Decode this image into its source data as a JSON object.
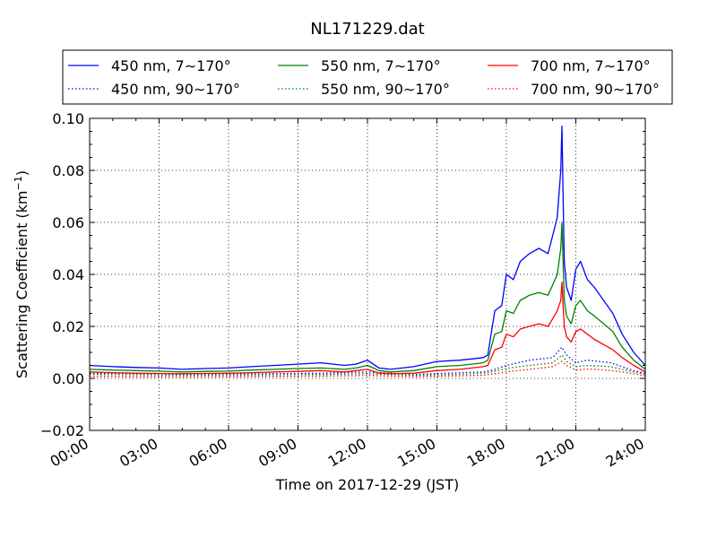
{
  "chart_data": {
    "type": "line",
    "title": "NL171229.dat",
    "xlabel": "Time on 2017-12-29 (JST)",
    "ylabel": "Scattering Coefficient (km",
    "ylabel_sup": "−1",
    "ylabel_end": ")",
    "grid": true,
    "legend_position": "top, above plot, 3 columns",
    "xlim": [
      0,
      24
    ],
    "ylim": [
      -0.02,
      0.1
    ],
    "x_ticks": [
      {
        "value": 0,
        "label": "00:00"
      },
      {
        "value": 3,
        "label": "03:00"
      },
      {
        "value": 6,
        "label": "06:00"
      },
      {
        "value": 9,
        "label": "09:00"
      },
      {
        "value": 12,
        "label": "12:00"
      },
      {
        "value": 15,
        "label": "15:00"
      },
      {
        "value": 18,
        "label": "18:00"
      },
      {
        "value": 21,
        "label": "21:00"
      },
      {
        "value": 24,
        "label": "24:00"
      }
    ],
    "y_ticks": [
      {
        "value": -0.02,
        "label": "−0.02"
      },
      {
        "value": 0.0,
        "label": "0.00"
      },
      {
        "value": 0.02,
        "label": "0.02"
      },
      {
        "value": 0.04,
        "label": "0.04"
      },
      {
        "value": 0.06,
        "label": "0.06"
      },
      {
        "value": 0.08,
        "label": "0.08"
      },
      {
        "value": 0.1,
        "label": "0.10"
      }
    ],
    "series": [
      {
        "name": "450 nm, 7∼170°",
        "color": "#0000ff",
        "style": "solid",
        "x": [
          0,
          1,
          2,
          3,
          4,
          5,
          6,
          7,
          8,
          9,
          10,
          11,
          11.5,
          12,
          12.5,
          13,
          14,
          15,
          16,
          16.5,
          17,
          17.2,
          17.5,
          17.8,
          18,
          18.3,
          18.6,
          19,
          19.4,
          19.8,
          20.0,
          20.2,
          20.35,
          20.4,
          20.45,
          20.5,
          20.6,
          20.8,
          21.0,
          21.2,
          21.5,
          21.8,
          22.2,
          22.6,
          23.0,
          23.5,
          24.0
        ],
        "y": [
          0.005,
          0.0045,
          0.0042,
          0.004,
          0.0035,
          0.0038,
          0.004,
          0.0045,
          0.005,
          0.0055,
          0.006,
          0.005,
          0.0055,
          0.007,
          0.004,
          0.0035,
          0.0045,
          0.0065,
          0.007,
          0.0075,
          0.008,
          0.009,
          0.026,
          0.028,
          0.04,
          0.038,
          0.045,
          0.048,
          0.05,
          0.048,
          0.055,
          0.062,
          0.08,
          0.097,
          0.07,
          0.045,
          0.035,
          0.03,
          0.042,
          0.045,
          0.038,
          0.035,
          0.03,
          0.025,
          0.017,
          0.01,
          0.005
        ]
      },
      {
        "name": "450 nm, 90∼170°",
        "color": "#0000ff",
        "style": "dotted",
        "x": [
          0,
          2,
          4,
          6,
          8,
          10,
          12,
          14,
          16,
          17,
          17.5,
          18,
          18.5,
          19,
          19.5,
          20,
          20.4,
          20.6,
          21,
          21.5,
          22,
          22.5,
          23,
          23.5,
          24
        ],
        "y": [
          0.002,
          0.0018,
          0.0016,
          0.0017,
          0.0018,
          0.002,
          0.0025,
          0.0015,
          0.0022,
          0.0025,
          0.0035,
          0.005,
          0.006,
          0.007,
          0.0075,
          0.008,
          0.012,
          0.009,
          0.006,
          0.007,
          0.0065,
          0.006,
          0.0045,
          0.003,
          0.002
        ]
      },
      {
        "name": "550 nm, 7∼170°",
        "color": "#008000",
        "style": "solid",
        "x": [
          0,
          1,
          2,
          3,
          4,
          5,
          6,
          7,
          8,
          9,
          10,
          11,
          11.5,
          12,
          12.5,
          13,
          14,
          15,
          16,
          16.5,
          17,
          17.2,
          17.5,
          17.8,
          18,
          18.3,
          18.6,
          19,
          19.4,
          19.8,
          20.0,
          20.2,
          20.35,
          20.4,
          20.45,
          20.5,
          20.6,
          20.8,
          21.0,
          21.2,
          21.5,
          21.8,
          22.2,
          22.6,
          23.0,
          23.5,
          24.0
        ],
        "y": [
          0.0035,
          0.0032,
          0.003,
          0.0028,
          0.0025,
          0.0027,
          0.0028,
          0.0032,
          0.0035,
          0.0038,
          0.004,
          0.0035,
          0.004,
          0.005,
          0.003,
          0.0025,
          0.003,
          0.0045,
          0.005,
          0.0055,
          0.006,
          0.007,
          0.017,
          0.018,
          0.026,
          0.025,
          0.03,
          0.032,
          0.033,
          0.032,
          0.036,
          0.04,
          0.05,
          0.06,
          0.045,
          0.03,
          0.024,
          0.021,
          0.028,
          0.03,
          0.026,
          0.024,
          0.021,
          0.018,
          0.012,
          0.007,
          0.0035
        ]
      },
      {
        "name": "550 nm, 90∼170°",
        "color": "#008000",
        "style": "dotted",
        "x": [
          0,
          2,
          4,
          6,
          8,
          10,
          12,
          14,
          16,
          17,
          17.5,
          18,
          18.5,
          19,
          19.5,
          20,
          20.4,
          20.6,
          21,
          21.5,
          22,
          22.5,
          23,
          23.5,
          24
        ],
        "y": [
          0.0015,
          0.0014,
          0.0012,
          0.0013,
          0.0014,
          0.0015,
          0.0018,
          0.0012,
          0.0016,
          0.002,
          0.0028,
          0.0038,
          0.0045,
          0.005,
          0.0055,
          0.006,
          0.009,
          0.0065,
          0.0045,
          0.005,
          0.0048,
          0.0045,
          0.0035,
          0.0025,
          0.0015
        ]
      },
      {
        "name": "700 nm, 7∼170°",
        "color": "#ff0000",
        "style": "solid",
        "x": [
          0,
          1,
          2,
          3,
          4,
          5,
          6,
          7,
          8,
          9,
          10,
          11,
          11.5,
          12,
          12.5,
          13,
          14,
          15,
          16,
          16.5,
          17,
          17.2,
          17.5,
          17.8,
          18,
          18.3,
          18.6,
          19,
          19.4,
          19.8,
          20.0,
          20.2,
          20.35,
          20.4,
          20.45,
          20.5,
          20.6,
          20.8,
          21.0,
          21.2,
          21.5,
          21.8,
          22.2,
          22.6,
          23.0,
          23.5,
          24.0
        ],
        "y": [
          0.0025,
          0.0022,
          0.002,
          0.0019,
          0.0018,
          0.0019,
          0.002,
          0.0022,
          0.0025,
          0.0027,
          0.003,
          0.0025,
          0.003,
          0.0035,
          0.002,
          0.0018,
          0.002,
          0.003,
          0.0035,
          0.004,
          0.0045,
          0.005,
          0.011,
          0.012,
          0.017,
          0.016,
          0.019,
          0.02,
          0.021,
          0.02,
          0.023,
          0.026,
          0.03,
          0.037,
          0.028,
          0.02,
          0.016,
          0.014,
          0.018,
          0.019,
          0.017,
          0.015,
          0.013,
          0.011,
          0.008,
          0.005,
          0.0025
        ]
      },
      {
        "name": "700 nm, 90∼170°",
        "color": "#ff0000",
        "style": "dotted",
        "x": [
          0,
          2,
          4,
          6,
          8,
          10,
          12,
          14,
          16,
          17,
          17.5,
          18,
          18.5,
          19,
          19.5,
          20,
          20.4,
          20.6,
          21,
          21.5,
          22,
          22.5,
          23,
          23.5,
          24
        ],
        "y": [
          0.0008,
          0.0007,
          0.0006,
          0.0007,
          0.0008,
          0.0009,
          0.0011,
          0.0007,
          0.001,
          0.0012,
          0.0018,
          0.0025,
          0.003,
          0.0035,
          0.004,
          0.0045,
          0.0065,
          0.005,
          0.0032,
          0.0036,
          0.0034,
          0.003,
          0.0025,
          0.0018,
          0.001
        ]
      }
    ]
  }
}
